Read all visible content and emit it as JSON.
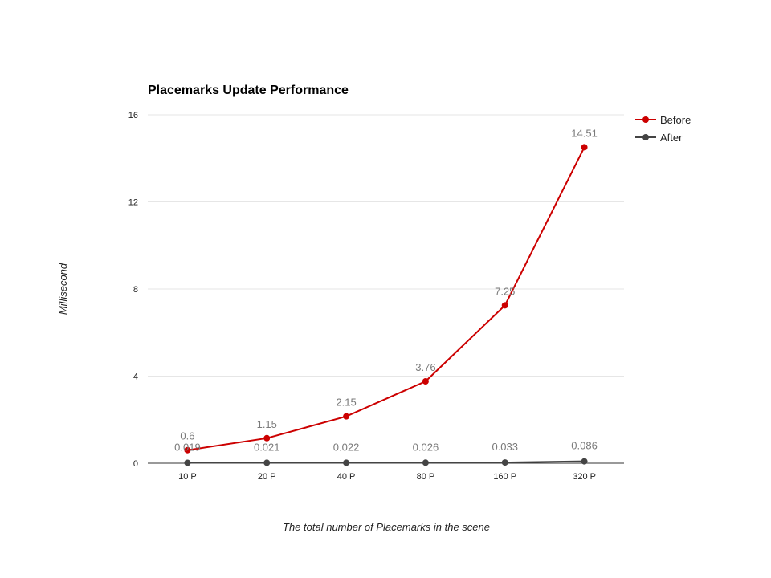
{
  "chart_data": {
    "type": "line",
    "title": "Placemarks Update Performance",
    "xlabel": "The total number of Placemarks in the scene",
    "ylabel": "Millisecond",
    "categories": [
      "10 P",
      "20 P",
      "40 P",
      "80 P",
      "160 P",
      "320 P"
    ],
    "ylim": [
      0,
      16
    ],
    "yticks": [
      "0",
      "4",
      "8",
      "12",
      "16"
    ],
    "grid": true,
    "legend": "right",
    "series": [
      {
        "name": "Before",
        "color": "#cc0000",
        "values": [
          0.6,
          1.15,
          2.15,
          3.76,
          7.25,
          14.51
        ],
        "labels": [
          "0.6",
          "1.15",
          "2.15",
          "3.76",
          "7.25",
          "14.51"
        ]
      },
      {
        "name": "After",
        "color": "#444444",
        "values": [
          0.019,
          0.021,
          0.022,
          0.026,
          0.033,
          0.086
        ],
        "labels": [
          "0.019",
          "0.021",
          "0.022",
          "0.026",
          "0.033",
          "0.086"
        ]
      }
    ]
  }
}
